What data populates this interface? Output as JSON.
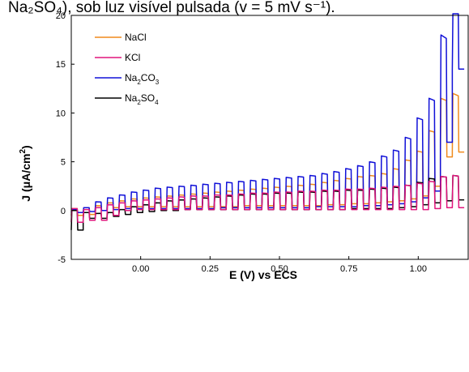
{
  "caption": {
    "text": "Na₂SO₄), sob luz visível pulsada (v = 5 mV s⁻¹)."
  },
  "chart_data": {
    "type": "line",
    "xlabel": "E (V) vs ECS",
    "ylabel_main": "J (μA/cm",
    "ylabel_sup": "2",
    "ylabel_close": ")",
    "xlim": [
      -0.25,
      1.18
    ],
    "ylim": [
      -5,
      20
    ],
    "x_ticks": [
      {
        "value": 0.0,
        "label": "0.00"
      },
      {
        "value": 0.25,
        "label": "0.25"
      },
      {
        "value": 0.5,
        "label": "0.50"
      },
      {
        "value": 0.75,
        "label": "0.75"
      },
      {
        "value": 1.0,
        "label": "1.00"
      }
    ],
    "y_ticks": [
      {
        "value": -5,
        "label": "-5"
      },
      {
        "value": 0,
        "label": "0"
      },
      {
        "value": 5,
        "label": "5"
      },
      {
        "value": 10,
        "label": "10"
      },
      {
        "value": 15,
        "label": "15"
      },
      {
        "value": 20,
        "label": "20"
      }
    ],
    "legend_position": "top-left",
    "series": [
      {
        "name": "NaCl",
        "name_base": "NaCl",
        "name_sub1": "",
        "name_mid": "",
        "name_sub2": "",
        "color": "#f08a1c",
        "light": [
          0.2,
          0.3,
          0.5,
          0.8,
          1.0,
          1.2,
          1.3,
          1.4,
          1.5,
          1.6,
          1.7,
          1.8,
          1.9,
          2.0,
          2.1,
          2.2,
          2.3,
          2.4,
          2.5,
          2.6,
          2.7,
          2.9,
          3.1,
          3.3,
          3.5,
          3.6,
          3.8,
          4.3,
          5.2,
          6.1,
          8.2,
          11.5,
          12.0
        ],
        "dark": [
          -0.5,
          -0.4,
          0.0,
          0.3,
          0.4,
          0.4,
          0.4,
          0.4,
          0.4,
          0.4,
          0.4,
          0.4,
          0.4,
          0.4,
          0.5,
          0.5,
          0.5,
          0.5,
          0.5,
          0.5,
          0.5,
          0.6,
          0.6,
          0.7,
          0.7,
          0.8,
          0.9,
          1.0,
          1.2,
          1.5,
          2.5,
          5.5,
          6.0
        ]
      },
      {
        "name": "KCl",
        "name_base": "KCl",
        "name_sub1": "",
        "name_mid": "",
        "name_sub2": "",
        "color": "#e0157c",
        "light": [
          0.2,
          0.1,
          0.3,
          0.6,
          0.8,
          1.0,
          1.1,
          1.2,
          1.3,
          1.4,
          1.5,
          1.5,
          1.6,
          1.6,
          1.7,
          1.8,
          1.8,
          1.9,
          1.9,
          2.0,
          2.0,
          2.1,
          2.1,
          2.2,
          2.2,
          2.3,
          2.4,
          2.5,
          2.6,
          2.8,
          3.0,
          3.5,
          3.6
        ],
        "dark": [
          -1.2,
          -1.0,
          -1.0,
          -0.5,
          0.0,
          0.1,
          0.1,
          0.1,
          0.1,
          0.1,
          0.1,
          0.1,
          0.1,
          0.1,
          0.1,
          0.1,
          0.1,
          0.1,
          0.1,
          0.1,
          0.1,
          0.1,
          0.1,
          0.1,
          0.1,
          0.1,
          0.1,
          0.1,
          0.1,
          0.1,
          0.2,
          0.3,
          0.3
        ]
      },
      {
        "name": "Na2CO3",
        "name_base": "Na",
        "name_sub1": "2",
        "name_mid": "CO",
        "name_sub2": "3",
        "color": "#1010d8",
        "light": [
          0.1,
          0.3,
          0.9,
          1.3,
          1.6,
          1.9,
          2.1,
          2.3,
          2.4,
          2.5,
          2.6,
          2.7,
          2.8,
          2.9,
          3.0,
          3.1,
          3.2,
          3.3,
          3.4,
          3.5,
          3.6,
          3.8,
          4.0,
          4.3,
          4.6,
          5.0,
          5.6,
          6.2,
          7.5,
          9.5,
          11.5,
          18.0,
          21.0
        ],
        "dark": [
          -0.2,
          -0.1,
          0.0,
          0.1,
          0.2,
          0.2,
          0.2,
          0.2,
          0.2,
          0.2,
          0.2,
          0.2,
          0.3,
          0.3,
          0.3,
          0.3,
          0.3,
          0.3,
          0.3,
          0.3,
          0.4,
          0.4,
          0.4,
          0.4,
          0.5,
          0.5,
          0.6,
          0.7,
          0.9,
          1.3,
          2.0,
          7.0,
          14.5
        ]
      },
      {
        "name": "Na2SO4",
        "name_base": "Na",
        "name_sub1": "2",
        "name_mid": "SO",
        "name_sub2": "4",
        "color": "#000000",
        "light": [
          0.0,
          -0.2,
          -0.3,
          -0.2,
          0.1,
          0.4,
          0.6,
          0.8,
          1.0,
          1.1,
          1.2,
          1.3,
          1.4,
          1.5,
          1.6,
          1.7,
          1.7,
          1.8,
          1.8,
          1.9,
          1.9,
          2.0,
          2.0,
          2.1,
          2.1,
          2.2,
          2.3,
          2.4,
          2.6,
          2.9,
          3.3,
          3.5,
          3.6
        ],
        "dark": [
          -2.0,
          -0.8,
          -0.8,
          -0.6,
          -0.4,
          -0.2,
          -0.1,
          0.0,
          0.0,
          0.1,
          0.1,
          0.1,
          0.1,
          0.1,
          0.1,
          0.1,
          0.1,
          0.1,
          0.1,
          0.1,
          0.1,
          0.1,
          0.1,
          0.2,
          0.2,
          0.2,
          0.2,
          0.3,
          0.4,
          0.6,
          0.8,
          1.0,
          1.1
        ]
      }
    ],
    "cycles": {
      "x_start": -0.25,
      "period": 0.0429,
      "count": 33
    }
  }
}
